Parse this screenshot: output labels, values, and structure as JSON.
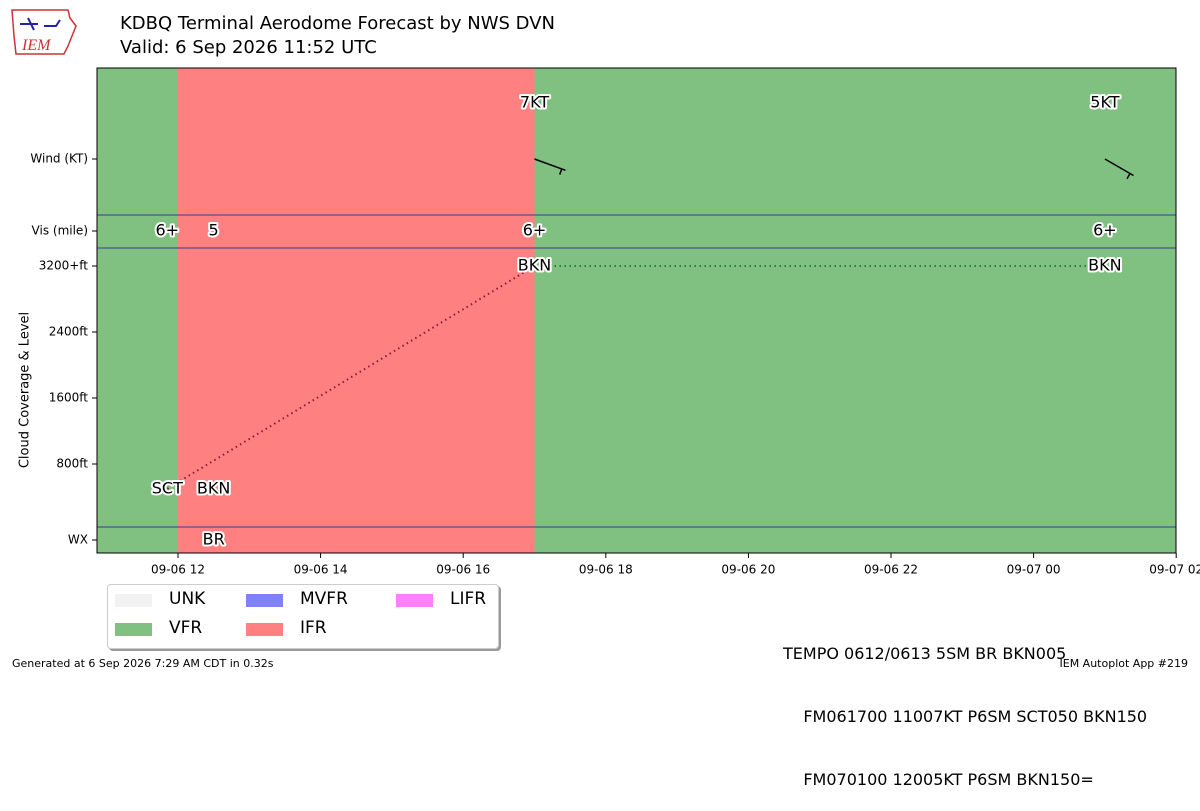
{
  "header": {
    "title": "KDBQ Terminal Aerodome Forecast by NWS DVN",
    "valid": "Valid: 6 Sep 2026 11:52 UTC"
  },
  "logo": {
    "text": "IEM"
  },
  "chart_data": {
    "type": "timeline",
    "x_ticks": [
      "09-06 12",
      "09-06 14",
      "09-06 16",
      "09-06 18",
      "09-06 20",
      "09-06 22",
      "09-07 00",
      "09-07 02"
    ],
    "x_range_hours": [
      -1.15,
      14.0
    ],
    "rows": {
      "wind": "Wind (KT)",
      "vis": "Vis (mile)",
      "cloud": "Cloud Coverage & Level",
      "wx": "WX"
    },
    "cloud_ticks": [
      "800ft",
      "1600ft",
      "2400ft",
      "3200+ft"
    ],
    "cloud_tick_values": [
      800,
      1600,
      2400,
      3200
    ],
    "flight_categories": [
      {
        "start": -1.15,
        "end": 0.0,
        "category": "VFR"
      },
      {
        "start": 0.0,
        "end": 5.0,
        "category": "IFR"
      },
      {
        "start": 5.0,
        "end": 14.0,
        "category": "VFR"
      }
    ],
    "winds": [
      {
        "time": 5.0,
        "label": "7KT",
        "dir": 110,
        "speed": 7
      },
      {
        "time": 13.0,
        "label": "5KT",
        "dir": 120,
        "speed": 5
      }
    ],
    "visibility": [
      {
        "time": -0.15,
        "label": "6+"
      },
      {
        "time": 0.5,
        "label": "5"
      },
      {
        "time": 5.0,
        "label": "6+"
      },
      {
        "time": 13.0,
        "label": "6+"
      }
    ],
    "clouds": [
      {
        "time": -0.15,
        "label": "SCT",
        "level": 500
      },
      {
        "time": 0.5,
        "label": "BKN",
        "level": 500
      },
      {
        "time": 5.0,
        "label": "BKN",
        "level": 3200
      },
      {
        "time": 13.0,
        "label": "BKN",
        "level": 3200
      }
    ],
    "cloud_lines": [
      {
        "from": 0,
        "to": 2,
        "color": "#8b1a3a"
      },
      {
        "from": 2,
        "to": 3,
        "color": "#1e7d4a"
      }
    ],
    "weather": [
      {
        "time": 0.5,
        "label": "BR"
      }
    ]
  },
  "legend": [
    {
      "label": "UNK",
      "color": "#f2f2f2"
    },
    {
      "label": "VFR",
      "color": "#80c080"
    },
    {
      "label": "MVFR",
      "color": "#8080f8"
    },
    {
      "label": "IFR",
      "color": "#ff8080"
    },
    {
      "label": "LIFR",
      "color": "#ff80ff"
    }
  ],
  "raw_taf": [
    "TEMPO 0612/0613 5SM BR BKN005",
    "    FM061700 11007KT P6SM SCT050 BKN150",
    "    FM070100 12005KT P6SM BKN150="
  ],
  "footer": {
    "generated": "Generated at 6 Sep 2026 7:29 AM CDT in 0.32s",
    "app": "IEM Autoplot App #219"
  }
}
